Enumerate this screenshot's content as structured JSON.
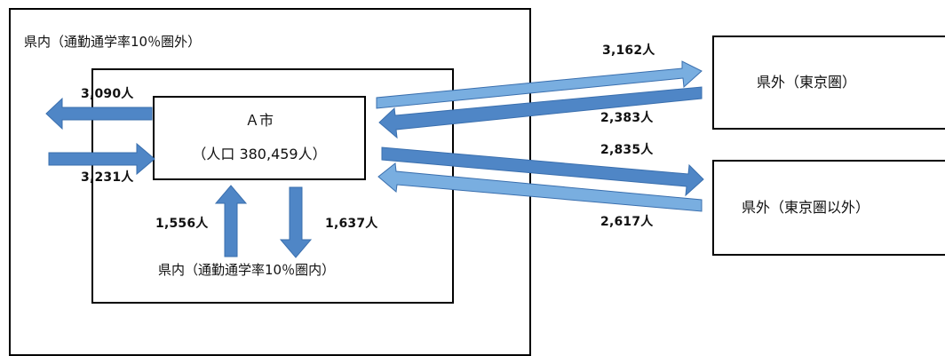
{
  "regions": {
    "outer_label": "県内（通勤通学率10％圏外）",
    "inner_label": "県内（通勤通学率10％圏内）",
    "city_name": "Ａ市",
    "city_population": "（人口 380,459人）",
    "tokyo_label": "県外（東京圏）",
    "other_label": "県外（東京圏以外）"
  },
  "flows": {
    "outer_out": "3,090人",
    "outer_in": "3,231人",
    "inner_in": "1,556人",
    "inner_out": "1,637人",
    "tokyo_out": "3,162人",
    "tokyo_in": "2,383人",
    "other_out": "2,835人",
    "other_in": "2,617人"
  },
  "colors": {
    "arrow_dark": "#4f86c6",
    "arrow_light": "#79aee0",
    "arrow_edge": "#3a6fae"
  }
}
